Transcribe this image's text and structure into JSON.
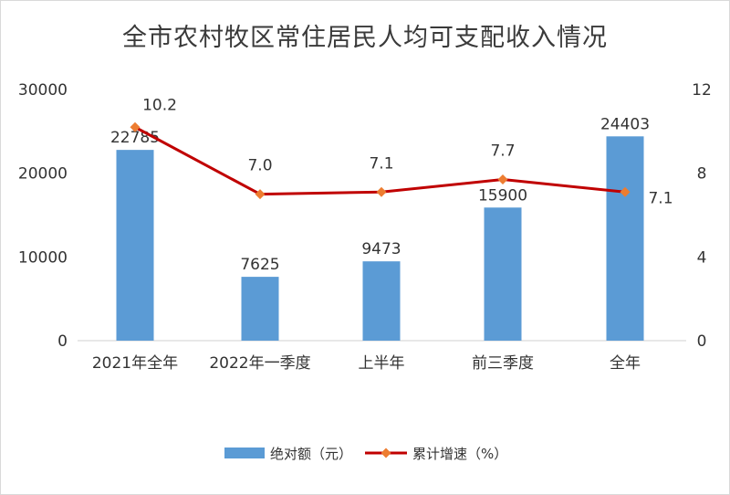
{
  "chart_data": {
    "type": "bar",
    "title": "全市农村牧区常住居民人均可支配收入情况",
    "categories": [
      "2021年全年",
      "2022年一季度",
      "上半年",
      "前三季度",
      "全年"
    ],
    "series": [
      {
        "name": "绝对额（元）",
        "type": "bar",
        "axis": "left",
        "values": [
          22785,
          7625,
          9473,
          15900,
          24403
        ],
        "color": "#5b9bd5"
      },
      {
        "name": "累计增速（%）",
        "type": "line",
        "axis": "right",
        "values": [
          10.2,
          7.0,
          7.1,
          7.7,
          7.1
        ],
        "color": "#c00000",
        "marker_color": "#ed7d31"
      }
    ],
    "y_left": {
      "min": 0,
      "max": 30000,
      "ticks": [
        0,
        10000,
        20000,
        30000
      ]
    },
    "y_right": {
      "min": 0,
      "max": 12,
      "ticks": [
        0,
        4,
        8,
        12
      ]
    },
    "grid": false,
    "legend_position": "bottom"
  }
}
